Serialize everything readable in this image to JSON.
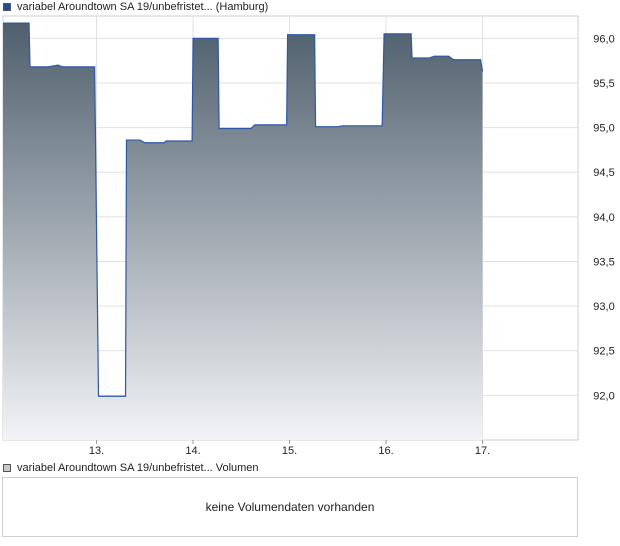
{
  "price_legend": {
    "label": "variabel Aroundtown SA 19/unbefristet... (Hamburg)",
    "color": "#1f4e96"
  },
  "volume_legend": {
    "label": "variabel Aroundtown SA 19/unbefristet... Volumen",
    "color": "#c9c9c9"
  },
  "volume_panel": {
    "message": "keine Volumendaten vorhanden"
  },
  "chart_data": {
    "type": "area",
    "title": "variabel Aroundtown SA 19/unbefristet... (Hamburg)",
    "xlabel": "",
    "ylabel": "",
    "x_ticks": [
      "13.",
      "14.",
      "15.",
      "16.",
      "17."
    ],
    "y_ticks": [
      "92,0",
      "92,5",
      "93,0",
      "93,5",
      "94,0",
      "94,5",
      "95,0",
      "95,5",
      "96,0"
    ],
    "ylim": [
      91.5,
      96.25
    ],
    "xlim": [
      12.03,
      17.99
    ],
    "grid": true,
    "series": [
      {
        "name": "variabel Aroundtown SA 19/unbefristet... (Hamburg)",
        "line_color": "#2f57a6",
        "fill_top": "#4f5f6d",
        "fill_bottom": "#f2f3f6",
        "points": [
          [
            12.03,
            96.17
          ],
          [
            12.3,
            96.17
          ],
          [
            12.31,
            95.68
          ],
          [
            12.5,
            95.68
          ],
          [
            12.6,
            95.7
          ],
          [
            12.65,
            95.68
          ],
          [
            12.98,
            95.68
          ],
          [
            13.02,
            91.99
          ],
          [
            13.3,
            91.99
          ],
          [
            13.31,
            94.86
          ],
          [
            13.45,
            94.86
          ],
          [
            13.5,
            94.83
          ],
          [
            13.7,
            94.83
          ],
          [
            13.72,
            94.85
          ],
          [
            13.99,
            94.85
          ],
          [
            14.0,
            96.0
          ],
          [
            14.26,
            96.0
          ],
          [
            14.27,
            94.99
          ],
          [
            14.6,
            94.99
          ],
          [
            14.64,
            95.03
          ],
          [
            14.97,
            95.03
          ],
          [
            14.98,
            96.04
          ],
          [
            15.26,
            96.04
          ],
          [
            15.27,
            95.01
          ],
          [
            15.5,
            95.01
          ],
          [
            15.55,
            95.02
          ],
          [
            15.96,
            95.02
          ],
          [
            15.98,
            96.05
          ],
          [
            16.26,
            96.05
          ],
          [
            16.27,
            95.78
          ],
          [
            16.45,
            95.78
          ],
          [
            16.5,
            95.8
          ],
          [
            16.65,
            95.8
          ],
          [
            16.7,
            95.76
          ],
          [
            16.98,
            95.76
          ],
          [
            17.0,
            95.63
          ]
        ]
      }
    ]
  }
}
